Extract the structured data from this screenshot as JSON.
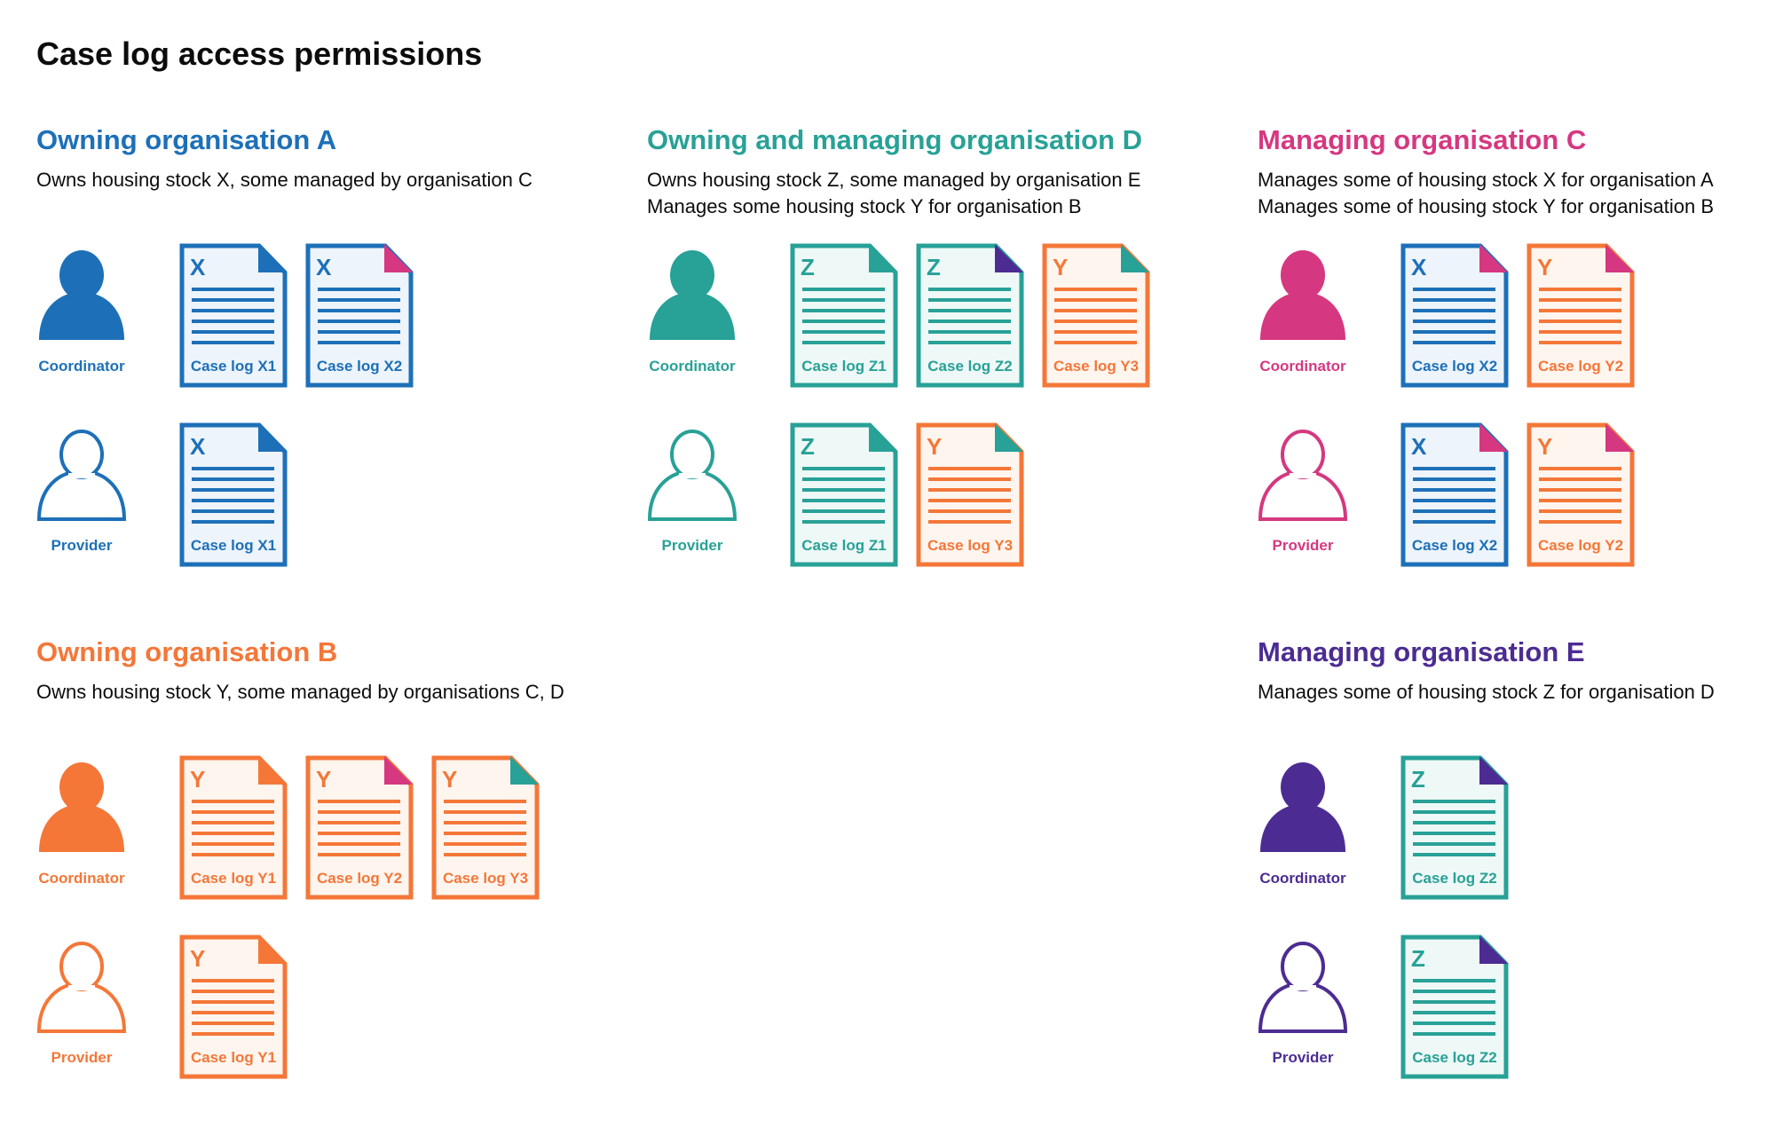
{
  "title": "Case log access permissions",
  "colors": {
    "blue": "#1d70b8",
    "teal": "#28a197",
    "pink": "#d53880",
    "orange": "#f47738",
    "purple": "#4c2c92"
  },
  "tints": {
    "blue": "#edf4fb",
    "teal": "#eef8f6",
    "orange": "#fef5ef"
  },
  "letter_colors": {
    "X": "blue",
    "Y": "orange",
    "Z": "teal"
  },
  "sections": [
    {
      "id": "sec-a",
      "color": "blue",
      "heading": "Owning organisation A",
      "description": [
        "Owns housing stock X, some managed by organisation C"
      ],
      "rows": [
        {
          "role": "Coordinator",
          "filled": true,
          "docs": [
            {
              "letter": "X",
              "label": "Case log X1",
              "corner": "blue"
            },
            {
              "letter": "X",
              "label": "Case log X2",
              "corner": "pink"
            }
          ]
        },
        {
          "role": "Provider",
          "filled": false,
          "docs": [
            {
              "letter": "X",
              "label": "Case log X1",
              "corner": "blue"
            }
          ]
        }
      ]
    },
    {
      "id": "sec-d",
      "color": "teal",
      "heading": "Owning and managing organisation D",
      "description": [
        "Owns housing stock Z, some managed by organisation E",
        "Manages some housing stock Y for organisation B"
      ],
      "rows": [
        {
          "role": "Coordinator",
          "filled": true,
          "docs": [
            {
              "letter": "Z",
              "label": "Case log Z1",
              "corner": "teal"
            },
            {
              "letter": "Z",
              "label": "Case log Z2",
              "corner": "purple"
            },
            {
              "letter": "Y",
              "label": "Case log Y3",
              "corner": "teal"
            }
          ]
        },
        {
          "role": "Provider",
          "filled": false,
          "docs": [
            {
              "letter": "Z",
              "label": "Case log Z1",
              "corner": "teal"
            },
            {
              "letter": "Y",
              "label": "Case log Y3",
              "corner": "teal"
            }
          ]
        }
      ]
    },
    {
      "id": "sec-c",
      "color": "pink",
      "heading": "Managing organisation C",
      "description": [
        "Manages some of housing stock X for organisation A",
        "Manages some of housing stock Y for organisation B"
      ],
      "rows": [
        {
          "role": "Coordinator",
          "filled": true,
          "docs": [
            {
              "letter": "X",
              "label": "Case log X2",
              "corner": "pink"
            },
            {
              "letter": "Y",
              "label": "Case log Y2",
              "corner": "pink"
            }
          ]
        },
        {
          "role": "Provider",
          "filled": false,
          "docs": [
            {
              "letter": "X",
              "label": "Case log X2",
              "corner": "pink"
            },
            {
              "letter": "Y",
              "label": "Case log Y2",
              "corner": "pink"
            }
          ]
        }
      ]
    },
    {
      "id": "sec-b",
      "color": "orange",
      "heading": "Owning organisation B",
      "description": [
        "Owns housing stock Y, some managed by organisations C, D"
      ],
      "rows": [
        {
          "role": "Coordinator",
          "filled": true,
          "docs": [
            {
              "letter": "Y",
              "label": "Case log Y1",
              "corner": "orange"
            },
            {
              "letter": "Y",
              "label": "Case log Y2",
              "corner": "pink"
            },
            {
              "letter": "Y",
              "label": "Case log Y3",
              "corner": "teal"
            }
          ]
        },
        {
          "role": "Provider",
          "filled": false,
          "docs": [
            {
              "letter": "Y",
              "label": "Case log Y1",
              "corner": "orange"
            }
          ]
        }
      ]
    },
    {
      "id": "sec-e",
      "color": "purple",
      "heading": "Managing organisation E",
      "description": [
        "Manages some of housing stock Z for organisation D"
      ],
      "rows": [
        {
          "role": "Coordinator",
          "filled": true,
          "docs": [
            {
              "letter": "Z",
              "label": "Case log Z2",
              "corner": "purple"
            }
          ]
        },
        {
          "role": "Provider",
          "filled": false,
          "docs": [
            {
              "letter": "Z",
              "label": "Case log Z2",
              "corner": "purple"
            }
          ]
        }
      ]
    }
  ]
}
